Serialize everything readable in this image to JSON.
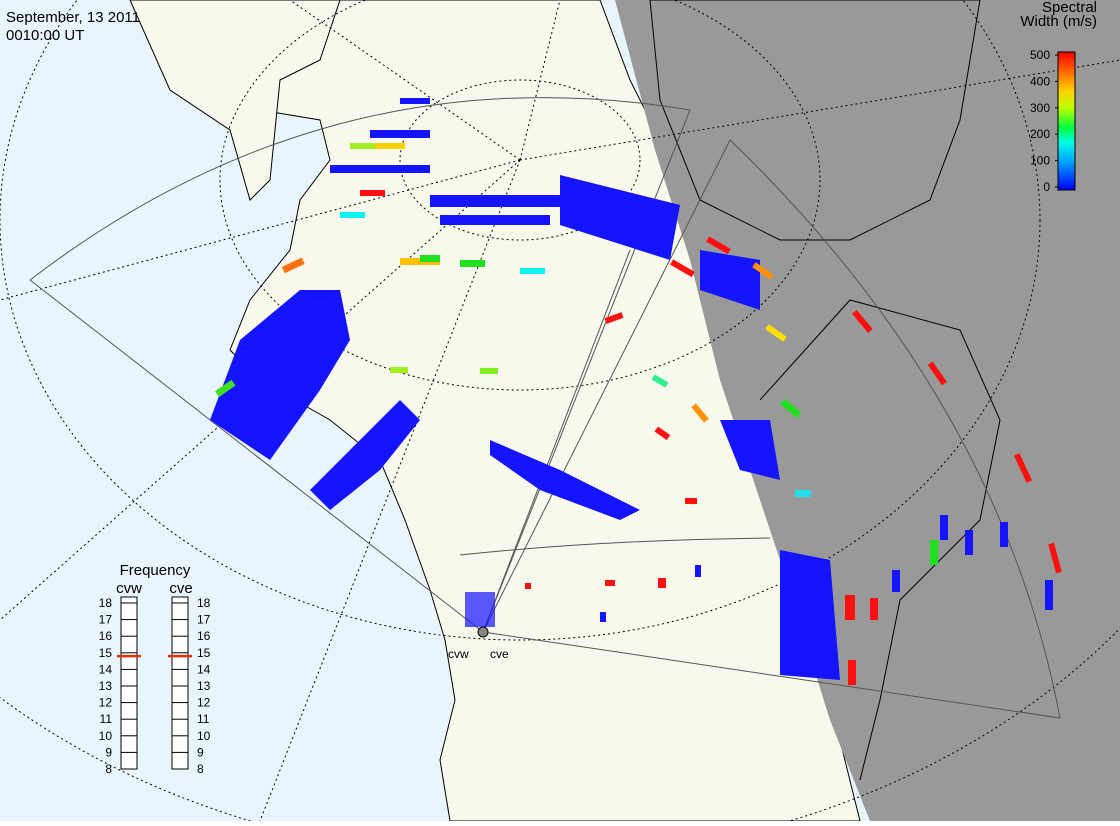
{
  "header": {
    "date": "September, 13 2011",
    "time": "0010:00 UT"
  },
  "colorbar": {
    "title_line1": "Spectral",
    "title_line2": "Width (m/s)",
    "ticks": [
      0,
      100,
      200,
      300,
      400,
      500
    ]
  },
  "frequency": {
    "title": "Frequency",
    "scale": [
      8,
      9,
      10,
      11,
      12,
      13,
      14,
      15,
      16,
      17,
      18
    ],
    "radars": [
      {
        "name": "cvw",
        "value": 14.8
      },
      {
        "name": "cve",
        "value": 14.8
      }
    ]
  },
  "radar_sites": [
    "cvw",
    "cve"
  ]
}
